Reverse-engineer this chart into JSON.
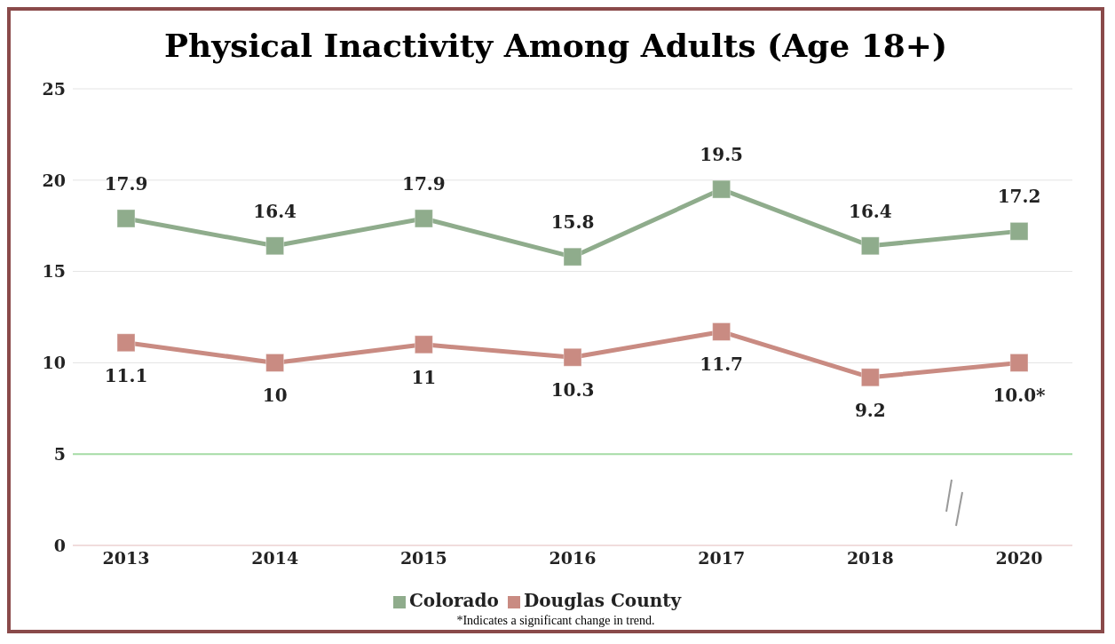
{
  "chart_data": {
    "type": "line",
    "title": "Physical Inactivity Among Adults (Age 18+)",
    "categories": [
      "2013",
      "2014",
      "2015",
      "2016",
      "2017",
      "2018",
      "2020"
    ],
    "series": [
      {
        "name": "Colorado",
        "color": "#8fac8c",
        "values": [
          17.9,
          16.4,
          17.9,
          15.8,
          19.5,
          16.4,
          17.2
        ],
        "value_labels": [
          "17.9",
          "16.4",
          "17.9",
          "15.8",
          "19.5",
          "16.4",
          "17.2"
        ]
      },
      {
        "name": "Douglas County",
        "color": "#c98b82",
        "values": [
          11.1,
          10,
          11,
          10.3,
          11.7,
          9.2,
          10.0
        ],
        "value_labels": [
          "11.1",
          "10",
          "11",
          "10.3",
          "11.7",
          "9.2",
          "10.0*"
        ]
      }
    ],
    "ylim": [
      0,
      25
    ],
    "yticks": [
      0,
      5,
      10,
      15,
      20,
      25
    ],
    "grid": "y",
    "ref_lines": [
      {
        "axis": "y",
        "value": 5,
        "color": "#a6dca6"
      }
    ],
    "legend": "bottom",
    "marker": "square",
    "line_style": "solid",
    "annotations": [
      "*Indicates a significant change in trend."
    ]
  }
}
